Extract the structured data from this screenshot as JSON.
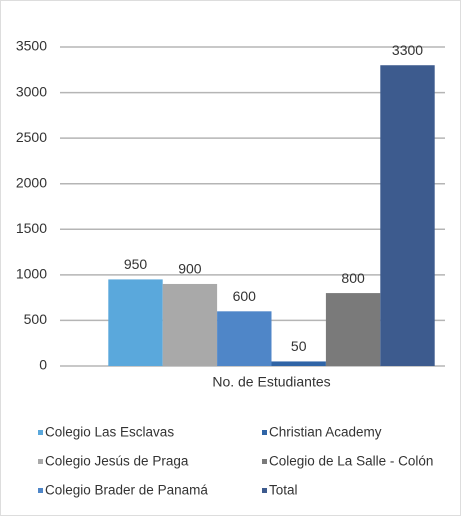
{
  "chart_data": {
    "type": "bar",
    "categories": [
      "No. de Estudiantes"
    ],
    "series": [
      {
        "name": "Colegio Las Esclavas",
        "color": "#5aa8dc",
        "values": [
          950
        ]
      },
      {
        "name": "Colegio Jesús de Praga",
        "color": "#a9a9a9",
        "values": [
          900
        ]
      },
      {
        "name": "Colegio Brader de Panamá",
        "color": "#4f86c8",
        "values": [
          600
        ]
      },
      {
        "name": "Christian Academy",
        "color": "#2f64a6",
        "values": [
          50
        ]
      },
      {
        "name": "Colegio de La Salle - Colón",
        "color": "#7a7a7a",
        "values": [
          800
        ]
      },
      {
        "name": "Total",
        "color": "#3d5b8e",
        "values": [
          3300
        ]
      }
    ],
    "ylim": [
      0,
      3500
    ],
    "yticks": [
      0,
      500,
      1000,
      1500,
      2000,
      2500,
      3000,
      3500
    ],
    "grid": true
  }
}
